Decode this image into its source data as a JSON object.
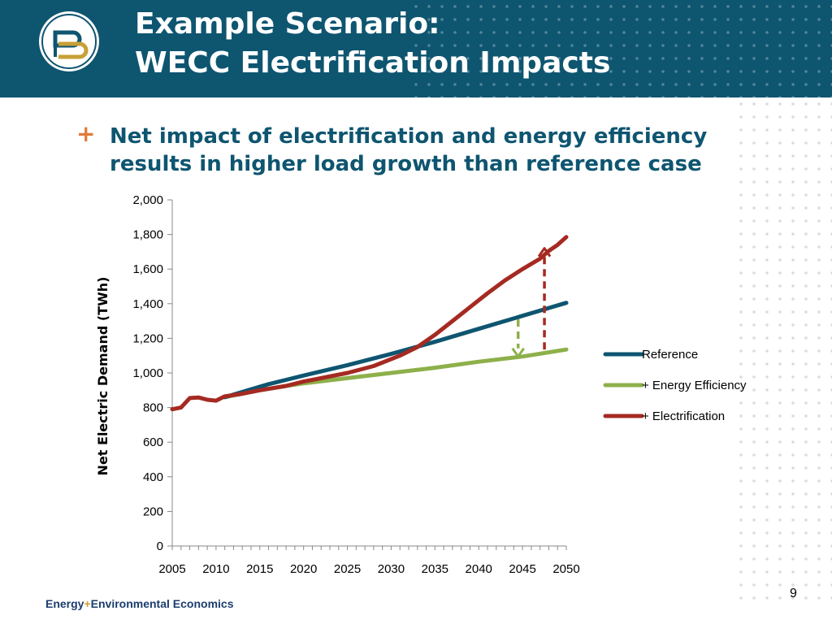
{
  "slide": {
    "title_line1": "Example Scenario:",
    "title_line2": "WECC Electrification Impacts",
    "bullet_marker": "+",
    "bullet_text": "Net impact of electrification and energy efficiency results in higher load growth than reference case",
    "page_number": "9"
  },
  "footer": {
    "brand_part1": "Energy",
    "brand_sep": "+",
    "brand_part2": "Environmental Economics"
  },
  "colors": {
    "header_bg": "#0e5570",
    "reference": "#0e5570",
    "energy_efficiency": "#8db04a",
    "electrification": "#a52a22",
    "accent_orange": "#e07a3a"
  },
  "chart_data": {
    "type": "line",
    "title": "",
    "xlabel": "",
    "ylabel": "Net Electric Demand (TWh)",
    "xlim": [
      2005,
      2050
    ],
    "ylim": [
      0,
      2000
    ],
    "yticks": [
      0,
      200,
      400,
      600,
      800,
      1000,
      1200,
      1400,
      1600,
      1800,
      2000
    ],
    "ytick_labels": [
      "0",
      "200",
      "400",
      "600",
      "800",
      "1,000",
      "1,200",
      "1,400",
      "1,600",
      "1,800",
      "2,000"
    ],
    "xticks": [
      2005,
      2010,
      2015,
      2020,
      2025,
      2030,
      2035,
      2040,
      2045,
      2050
    ],
    "legend_position": "right",
    "grid": false,
    "series": [
      {
        "name": "Reference",
        "color": "#0e5570",
        "points": [
          [
            2011,
            860
          ],
          [
            2012,
            875
          ],
          [
            2014,
            905
          ],
          [
            2016,
            935
          ],
          [
            2018,
            960
          ],
          [
            2020,
            985
          ],
          [
            2025,
            1045
          ],
          [
            2030,
            1110
          ],
          [
            2035,
            1180
          ],
          [
            2040,
            1255
          ],
          [
            2045,
            1330
          ],
          [
            2050,
            1405
          ]
        ]
      },
      {
        "name": "+ Energy Efficiency",
        "color": "#8db04a",
        "points": [
          [
            2011,
            860
          ],
          [
            2013,
            880
          ],
          [
            2015,
            900
          ],
          [
            2018,
            925
          ],
          [
            2020,
            940
          ],
          [
            2025,
            970
          ],
          [
            2030,
            1000
          ],
          [
            2035,
            1030
          ],
          [
            2040,
            1065
          ],
          [
            2045,
            1095
          ],
          [
            2050,
            1135
          ]
        ]
      },
      {
        "name": "+ Electrification",
        "color": "#a52a22",
        "points": [
          [
            2005,
            790
          ],
          [
            2006,
            800
          ],
          [
            2007,
            855
          ],
          [
            2008,
            858
          ],
          [
            2009,
            845
          ],
          [
            2010,
            840
          ],
          [
            2011,
            865
          ],
          [
            2013,
            880
          ],
          [
            2015,
            900
          ],
          [
            2018,
            925
          ],
          [
            2020,
            950
          ],
          [
            2025,
            1000
          ],
          [
            2028,
            1040
          ],
          [
            2031,
            1100
          ],
          [
            2033,
            1150
          ],
          [
            2035,
            1220
          ],
          [
            2037,
            1300
          ],
          [
            2039,
            1380
          ],
          [
            2041,
            1460
          ],
          [
            2043,
            1535
          ],
          [
            2045,
            1600
          ],
          [
            2047,
            1660
          ],
          [
            2048,
            1705
          ],
          [
            2049,
            1740
          ],
          [
            2050,
            1785
          ]
        ]
      }
    ],
    "annotations": [
      {
        "type": "arrow-down",
        "color": "#8db04a",
        "x": 2044.5,
        "y_from": 1310,
        "y_to": 1095
      },
      {
        "type": "arrow-up",
        "color": "#a52a22",
        "x": 2047.5,
        "y_from": 1135,
        "y_to": 1720
      }
    ]
  }
}
